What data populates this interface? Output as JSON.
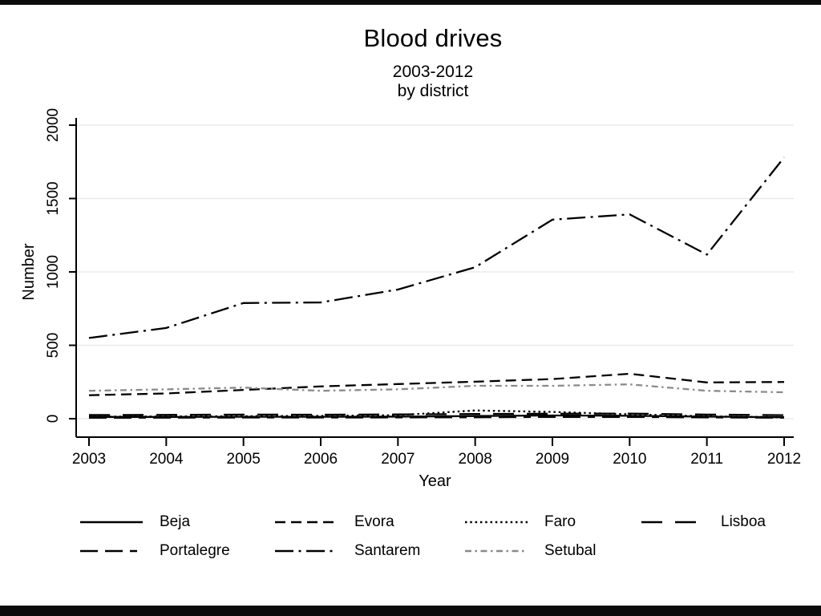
{
  "window": {
    "top_edge_bar": true,
    "bottom_edge_bar": true,
    "edge_bar_color": "#0b0b0b",
    "background_color": "#ffffff"
  },
  "chart_data": {
    "type": "line",
    "title": "Blood drives",
    "subtitle1": "2003-2012",
    "subtitle2": "by district",
    "xlabel": "Year",
    "ylabel": "Number",
    "x": [
      2003,
      2004,
      2005,
      2006,
      2007,
      2008,
      2009,
      2010,
      2011,
      2012
    ],
    "yticks": [
      0,
      500,
      1000,
      1500,
      2000
    ],
    "ylim": [
      0,
      2000
    ],
    "grid": true,
    "gridline_color": "#e7e7e7",
    "axis_color": "#000000",
    "legend_position": "bottom",
    "series": [
      {
        "name": "Beja",
        "color": "#000000",
        "pattern": "solid",
        "values": [
          12,
          12,
          13,
          13,
          14,
          18,
          22,
          20,
          14,
          10
        ]
      },
      {
        "name": "Evora",
        "color": "#000000",
        "pattern": "dash",
        "values": [
          160,
          172,
          196,
          220,
          236,
          252,
          270,
          306,
          247,
          250
        ]
      },
      {
        "name": "Faro",
        "color": "#000000",
        "pattern": "dot",
        "values": [
          14,
          15,
          17,
          19,
          24,
          56,
          46,
          30,
          16,
          10
        ]
      },
      {
        "name": "Lisboa",
        "color": "#000000",
        "pattern": "longdash",
        "values": [
          25,
          26,
          28,
          27,
          29,
          32,
          34,
          35,
          28,
          24
        ]
      },
      {
        "name": "Portalegre",
        "color": "#000000",
        "pattern": "longdash-shortdash",
        "values": [
          6,
          7,
          8,
          8,
          9,
          10,
          12,
          12,
          9,
          7
        ]
      },
      {
        "name": "Santarem",
        "color": "#000000",
        "pattern": "longdash-dot",
        "values": [
          550,
          618,
          788,
          792,
          880,
          1032,
          1356,
          1392,
          1118,
          1780
        ]
      },
      {
        "name": "Setubal",
        "color": "#8a8a8a",
        "pattern": "shortdash-dot",
        "values": [
          190,
          200,
          212,
          190,
          200,
          224,
          224,
          234,
          190,
          180
        ]
      }
    ],
    "legend_rows": [
      [
        "Beja",
        "Evora",
        "Faro",
        "Lisboa"
      ],
      [
        "Portalegre",
        "Santarem",
        "Setubal"
      ]
    ]
  }
}
